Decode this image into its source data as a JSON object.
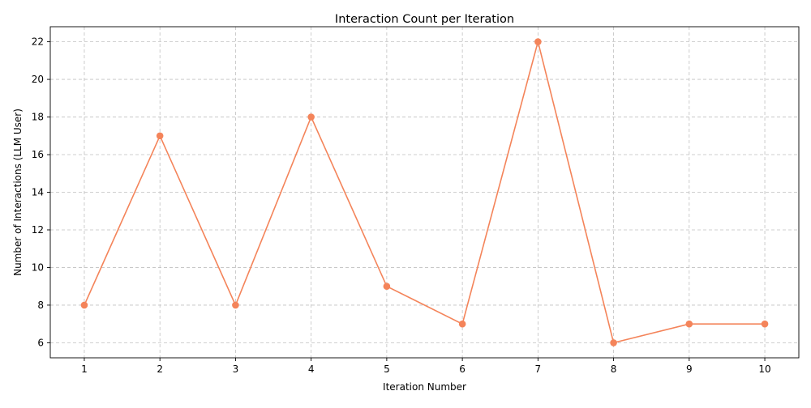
{
  "chart_data": {
    "type": "line",
    "title": "Interaction Count per Iteration",
    "xlabel": "Iteration Number",
    "ylabel": "Number of Interactions (LLM User)",
    "x": [
      1,
      2,
      3,
      4,
      5,
      6,
      7,
      8,
      9,
      10
    ],
    "series": [
      {
        "values": [
          8,
          17,
          8,
          18,
          9,
          7,
          22,
          6,
          7,
          7
        ],
        "color": "#f4845a",
        "marker": "circle"
      }
    ],
    "xticks": [
      1,
      2,
      3,
      4,
      5,
      6,
      7,
      8,
      9,
      10
    ],
    "yticks": [
      6,
      8,
      10,
      12,
      14,
      16,
      18,
      20,
      22
    ],
    "xlim": [
      0.55,
      10.45
    ],
    "ylim": [
      5.2,
      22.8
    ],
    "grid": true
  }
}
